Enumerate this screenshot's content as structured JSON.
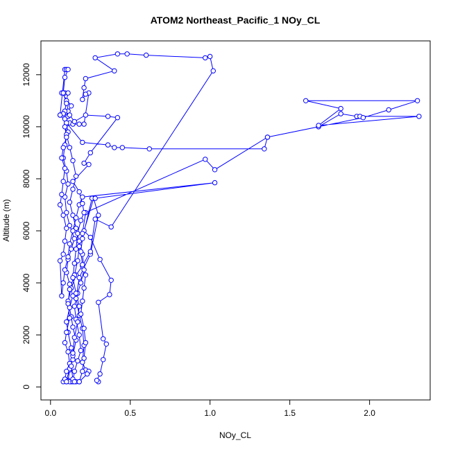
{
  "chart_data": {
    "type": "line",
    "title": "ATOM2 Northeast_Pacific_1 NOy_CL",
    "xlabel": "NOy_CL",
    "ylabel": "Altitude (m)",
    "xlim": [
      -0.06,
      2.38
    ],
    "ylim": [
      -500,
      13300
    ],
    "xticks": [
      0.0,
      0.5,
      1.0,
      1.5,
      2.0
    ],
    "xtick_labels": [
      "0.0",
      "0.5",
      "1.0",
      "1.5",
      "2.0"
    ],
    "yticks": [
      0,
      2000,
      4000,
      6000,
      8000,
      10000,
      12000
    ],
    "ytick_labels": [
      "0",
      "2000",
      "4000",
      "6000",
      "8000",
      "10000",
      "12000"
    ],
    "marker": "open-circle",
    "grid": false,
    "series": [
      {
        "color": "#0000ff",
        "points": [
          [
            0.3,
            200
          ],
          [
            0.29,
            250
          ],
          [
            0.31,
            500
          ],
          [
            0.33,
            1050
          ],
          [
            0.35,
            1650
          ],
          [
            0.33,
            1850
          ],
          [
            0.3,
            3250
          ],
          [
            0.37,
            3550
          ],
          [
            0.38,
            4100
          ],
          [
            0.31,
            4900
          ],
          [
            0.25,
            5750
          ],
          [
            0.21,
            6000
          ],
          [
            0.27,
            7250
          ],
          [
            0.3,
            6600
          ],
          [
            0.25,
            5100
          ],
          [
            0.18,
            4200
          ],
          [
            0.16,
            3400
          ],
          [
            0.18,
            2750
          ],
          [
            0.2,
            2250
          ],
          [
            0.21,
            1600
          ],
          [
            0.2,
            950
          ],
          [
            0.22,
            650
          ],
          [
            0.24,
            600
          ],
          [
            0.23,
            500
          ],
          [
            0.18,
            200
          ],
          [
            0.16,
            200
          ],
          [
            0.13,
            200
          ],
          [
            0.1,
            200
          ],
          [
            0.08,
            200
          ],
          [
            0.11,
            250
          ],
          [
            0.12,
            650
          ],
          [
            0.14,
            1050
          ],
          [
            0.13,
            1500
          ],
          [
            0.11,
            2100
          ],
          [
            0.1,
            2500
          ],
          [
            0.12,
            3050
          ],
          [
            0.14,
            3500
          ],
          [
            0.12,
            3950
          ],
          [
            0.1,
            4400
          ],
          [
            0.11,
            4900
          ],
          [
            0.13,
            5300
          ],
          [
            0.15,
            5700
          ],
          [
            0.12,
            6200
          ],
          [
            0.1,
            6700
          ],
          [
            0.09,
            7300
          ],
          [
            0.11,
            7800
          ],
          [
            0.1,
            8300
          ],
          [
            0.08,
            8800
          ],
          [
            0.09,
            9300
          ],
          [
            0.11,
            9800
          ],
          [
            0.1,
            10100
          ],
          [
            0.12,
            10150
          ],
          [
            0.14,
            10100
          ],
          [
            0.18,
            10100
          ],
          [
            0.21,
            10100
          ],
          [
            0.24,
            11300
          ],
          [
            0.22,
            11250
          ],
          [
            0.2,
            11050
          ],
          [
            0.21,
            11500
          ],
          [
            0.22,
            11850
          ],
          [
            0.4,
            12150
          ],
          [
            0.28,
            12650
          ],
          [
            0.42,
            12800
          ],
          [
            0.48,
            12800
          ],
          [
            0.6,
            12750
          ],
          [
            0.97,
            12650
          ],
          [
            1.0,
            12700
          ],
          [
            1.02,
            12150
          ],
          [
            0.38,
            6150
          ],
          [
            0.28,
            6450
          ],
          [
            0.25,
            5200
          ],
          [
            0.2,
            4650
          ],
          [
            0.16,
            4300
          ],
          [
            0.13,
            3800
          ],
          [
            0.11,
            3300
          ],
          [
            0.13,
            2700
          ],
          [
            0.14,
            2300
          ],
          [
            0.16,
            1800
          ],
          [
            0.14,
            1200
          ],
          [
            0.12,
            700
          ],
          [
            0.1,
            250
          ],
          [
            0.12,
            200
          ],
          [
            0.14,
            200
          ],
          [
            0.15,
            600
          ],
          [
            0.17,
            1000
          ],
          [
            0.19,
            1400
          ],
          [
            0.18,
            2000
          ],
          [
            0.16,
            2600
          ],
          [
            0.15,
            3100
          ],
          [
            0.17,
            3600
          ],
          [
            0.19,
            4000
          ],
          [
            0.21,
            4500
          ],
          [
            0.2,
            5100
          ],
          [
            0.18,
            5600
          ],
          [
            0.16,
            6100
          ],
          [
            0.14,
            6600
          ],
          [
            0.12,
            7100
          ],
          [
            0.14,
            7600
          ],
          [
            0.16,
            8100
          ],
          [
            0.14,
            8700
          ],
          [
            0.12,
            9200
          ],
          [
            0.1,
            9700
          ],
          [
            0.09,
            10300
          ],
          [
            0.11,
            10600
          ],
          [
            0.13,
            10800
          ],
          [
            0.07,
            11300
          ],
          [
            0.09,
            11300
          ],
          [
            0.11,
            11300
          ],
          [
            0.1,
            11000
          ],
          [
            0.09,
            10600
          ],
          [
            0.08,
            10500
          ],
          [
            0.06,
            10450
          ],
          [
            0.1,
            10150
          ],
          [
            0.2,
            9400
          ],
          [
            0.36,
            9300
          ],
          [
            0.4,
            9200
          ],
          [
            0.45,
            9200
          ],
          [
            0.62,
            9150
          ],
          [
            1.34,
            9150
          ],
          [
            1.36,
            9600
          ],
          [
            1.68,
            10000
          ],
          [
            1.82,
            10500
          ],
          [
            1.92,
            10400
          ],
          [
            1.94,
            10400
          ],
          [
            2.31,
            10400
          ],
          [
            1.68,
            10050
          ],
          [
            1.82,
            10700
          ],
          [
            1.6,
            11000
          ],
          [
            2.3,
            11000
          ],
          [
            2.12,
            10650
          ],
          [
            1.96,
            10350
          ],
          [
            1.36,
            9600
          ],
          [
            1.03,
            8350
          ],
          [
            0.97,
            8750
          ],
          [
            0.22,
            6700
          ],
          [
            0.2,
            5900
          ],
          [
            0.18,
            5400
          ],
          [
            0.17,
            4850
          ],
          [
            0.15,
            4300
          ],
          [
            0.12,
            3750
          ],
          [
            0.11,
            3200
          ],
          [
            0.12,
            2650
          ],
          [
            0.1,
            2100
          ],
          [
            0.09,
            1700
          ],
          [
            0.11,
            1350
          ],
          [
            0.12,
            900
          ],
          [
            0.1,
            600
          ],
          [
            0.09,
            300
          ],
          [
            0.1,
            200
          ],
          [
            0.18,
            200
          ],
          [
            0.2,
            600
          ],
          [
            0.21,
            1100
          ],
          [
            0.22,
            1700
          ],
          [
            0.21,
            2250
          ],
          [
            0.19,
            2800
          ],
          [
            0.2,
            3300
          ],
          [
            0.21,
            3800
          ],
          [
            0.22,
            4300
          ],
          [
            0.2,
            4700
          ],
          [
            0.19,
            5200
          ],
          [
            0.2,
            5700
          ],
          [
            0.26,
            7250
          ],
          [
            0.28,
            7250
          ],
          [
            1.03,
            7850
          ],
          [
            0.2,
            7300
          ],
          [
            0.18,
            7000
          ],
          [
            0.16,
            6500
          ],
          [
            0.14,
            6000
          ],
          [
            0.12,
            5500
          ],
          [
            0.11,
            5000
          ],
          [
            0.09,
            4500
          ],
          [
            0.08,
            4000
          ],
          [
            0.07,
            3500
          ],
          [
            0.06,
            4850
          ],
          [
            0.08,
            5100
          ],
          [
            0.09,
            5600
          ],
          [
            0.1,
            6100
          ],
          [
            0.08,
            6600
          ],
          [
            0.06,
            7000
          ],
          [
            0.07,
            7400
          ],
          [
            0.08,
            7900
          ],
          [
            0.09,
            8400
          ],
          [
            0.07,
            8800
          ],
          [
            0.08,
            9200
          ],
          [
            0.1,
            9600
          ],
          [
            0.09,
            10000
          ],
          [
            0.11,
            10400
          ],
          [
            0.08,
            10500
          ],
          [
            0.06,
            10450
          ],
          [
            0.09,
            12200
          ],
          [
            0.1,
            12200
          ],
          [
            0.11,
            12200
          ],
          [
            0.09,
            11900
          ],
          [
            0.08,
            11300
          ],
          [
            0.1,
            10900
          ],
          [
            0.12,
            10450
          ],
          [
            0.15,
            10200
          ],
          [
            0.22,
            10450
          ],
          [
            0.36,
            10400
          ],
          [
            0.42,
            10350
          ],
          [
            0.25,
            9000
          ],
          [
            0.21,
            8600
          ],
          [
            0.24,
            8550
          ],
          [
            0.14,
            7900
          ],
          [
            0.18,
            7500
          ],
          [
            0.2,
            7050
          ],
          [
            0.21,
            6700
          ],
          [
            0.19,
            6400
          ],
          [
            0.17,
            5900
          ],
          [
            0.16,
            5300
          ],
          [
            0.15,
            4750
          ],
          [
            0.14,
            4200
          ],
          [
            0.16,
            3600
          ],
          [
            0.18,
            3100
          ],
          [
            0.17,
            2500
          ],
          [
            0.15,
            1900
          ],
          [
            0.14,
            1300
          ],
          [
            0.13,
            800
          ],
          [
            0.14,
            300
          ],
          [
            0.15,
            200
          ]
        ]
      }
    ]
  }
}
